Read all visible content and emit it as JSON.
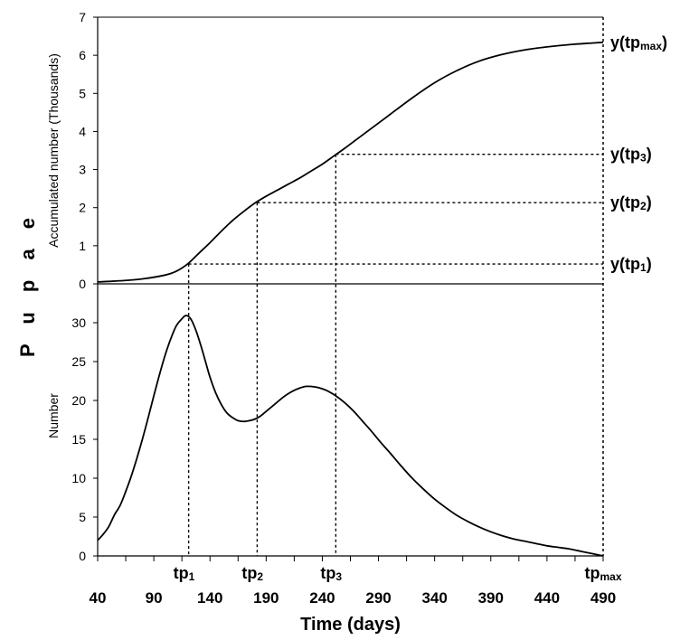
{
  "chart_data": [
    {
      "type": "line",
      "panel": "top",
      "ylabel": "Accumulated number (Thousands)",
      "ylim": [
        0,
        7
      ],
      "y_ticks": [
        0,
        1,
        2,
        3,
        4,
        5,
        6,
        7
      ],
      "xlim": [
        40,
        490
      ],
      "series": [
        {
          "x": [
            40,
            60,
            80,
            100,
            110,
            120,
            130,
            140,
            150,
            160,
            170,
            180,
            190,
            200,
            210,
            220,
            230,
            240,
            250,
            260,
            270,
            280,
            290,
            300,
            320,
            340,
            360,
            380,
            400,
            420,
            440,
            460,
            480,
            490
          ],
          "values": [
            0.05,
            0.08,
            0.13,
            0.23,
            0.33,
            0.52,
            0.8,
            1.08,
            1.38,
            1.66,
            1.9,
            2.12,
            2.3,
            2.46,
            2.62,
            2.78,
            2.96,
            3.14,
            3.35,
            3.56,
            3.78,
            4.0,
            4.22,
            4.44,
            4.88,
            5.28,
            5.6,
            5.85,
            6.02,
            6.14,
            6.22,
            6.28,
            6.32,
            6.34
          ]
        }
      ],
      "annotations": [
        {
          "text": "y(tp",
          "sub": "max",
          "after": ")",
          "x": 490,
          "y": 6.34
        },
        {
          "text": "y(tp",
          "sub": "3",
          "after": ")",
          "x": 252,
          "y": 3.4
        },
        {
          "text": "y(tp",
          "sub": "2",
          "after": ")",
          "x": 182,
          "y": 2.13
        },
        {
          "text": "y(tp",
          "sub": "1",
          "after": ")",
          "x": 121,
          "y": 0.52
        }
      ]
    },
    {
      "type": "line",
      "panel": "bottom",
      "ylabel": "Number",
      "ylim": [
        0,
        35
      ],
      "y_ticks": [
        0,
        5,
        10,
        15,
        20,
        25,
        30
      ],
      "xlim": [
        40,
        490
      ],
      "x_ticks": [
        40,
        90,
        140,
        190,
        240,
        290,
        340,
        390,
        440,
        490
      ],
      "x_tick_labels": [
        "40",
        "90",
        "140",
        "190",
        "240",
        "290",
        "340",
        "390",
        "440",
        "490"
      ],
      "xlabel": "Time (days)",
      "series": [
        {
          "x": [
            40,
            45,
            50,
            55,
            60,
            65,
            70,
            75,
            80,
            85,
            90,
            95,
            100,
            105,
            110,
            115,
            118,
            121,
            124,
            128,
            132,
            136,
            140,
            145,
            150,
            155,
            160,
            165,
            170,
            175,
            180,
            185,
            190,
            195,
            200,
            205,
            210,
            215,
            220,
            225,
            230,
            235,
            240,
            245,
            252,
            260,
            268,
            276,
            284,
            292,
            300,
            310,
            320,
            330,
            340,
            350,
            360,
            370,
            380,
            390,
            400,
            410,
            420,
            430,
            440,
            450,
            460,
            470,
            480,
            490
          ],
          "values": [
            2.0,
            2.8,
            3.8,
            5.3,
            6.5,
            8.3,
            10.3,
            12.6,
            15.1,
            17.8,
            20.6,
            23.3,
            25.8,
            27.9,
            29.6,
            30.5,
            30.9,
            30.8,
            30.2,
            28.8,
            27.0,
            25.0,
            23.0,
            21.0,
            19.5,
            18.4,
            17.8,
            17.4,
            17.3,
            17.4,
            17.6,
            18.0,
            18.6,
            19.2,
            19.8,
            20.4,
            20.9,
            21.3,
            21.6,
            21.8,
            21.8,
            21.7,
            21.5,
            21.2,
            20.6,
            19.7,
            18.6,
            17.3,
            16.0,
            14.6,
            13.3,
            11.6,
            10.0,
            8.6,
            7.3,
            6.2,
            5.2,
            4.4,
            3.7,
            3.1,
            2.6,
            2.2,
            1.9,
            1.6,
            1.3,
            1.1,
            0.9,
            0.6,
            0.3,
            0.0
          ]
        }
      ],
      "markers": [
        {
          "text": "tp",
          "sub": "1",
          "x": 121
        },
        {
          "text": "tp",
          "sub": "2",
          "x": 182
        },
        {
          "text": "tp",
          "sub": "3",
          "x": 252
        },
        {
          "text": "tp",
          "sub": "max",
          "x": 490
        }
      ]
    }
  ],
  "shared_ylabel": "P u p a e"
}
